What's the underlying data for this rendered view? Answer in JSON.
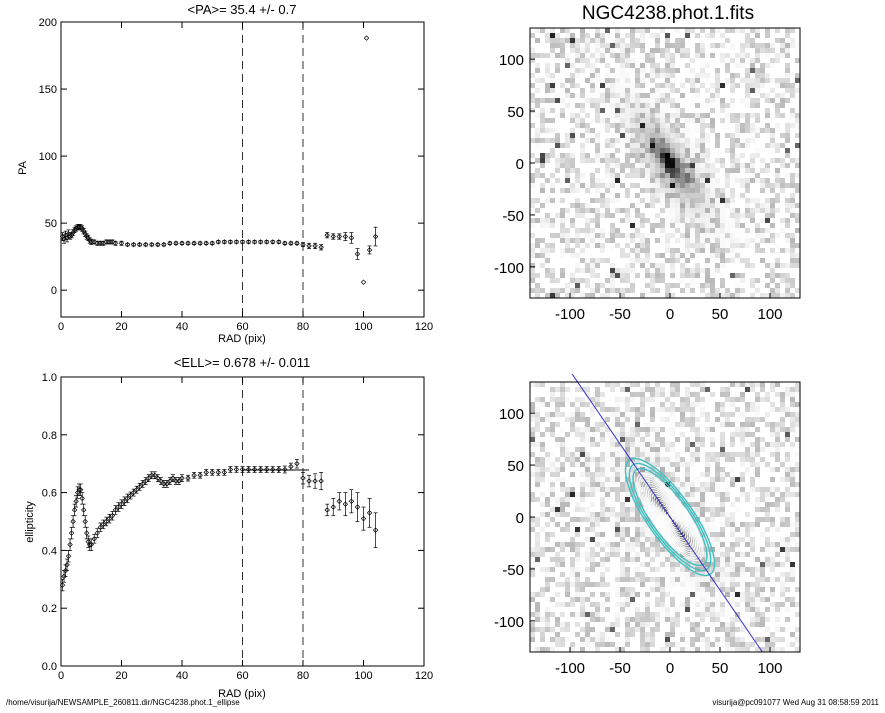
{
  "chart_data": [
    {
      "type": "scatter",
      "title": "<PA>=  35.4 +/-   0.7",
      "xlabel": "RAD (pix)",
      "ylabel": "PA",
      "xlim": [
        0,
        120
      ],
      "ylim": [
        -20,
        200
      ],
      "xticks": [
        0,
        20,
        40,
        60,
        80,
        100,
        120
      ],
      "yticks": [
        0,
        50,
        100,
        150,
        200
      ],
      "vlines": [
        60,
        80
      ],
      "grid": false,
      "series": [
        {
          "marker": "diamond",
          "points": [
            {
              "x": 0.5,
              "y": 40,
              "e": 3
            },
            {
              "x": 1,
              "y": 38,
              "e": 3
            },
            {
              "x": 1.5,
              "y": 41,
              "e": 3
            },
            {
              "x": 2,
              "y": 39,
              "e": 3
            },
            {
              "x": 2.5,
              "y": 42,
              "e": 3
            },
            {
              "x": 3,
              "y": 40,
              "e": 2
            },
            {
              "x": 3.5,
              "y": 41,
              "e": 2
            },
            {
              "x": 4,
              "y": 43,
              "e": 2
            },
            {
              "x": 4.5,
              "y": 45,
              "e": 2
            },
            {
              "x": 5,
              "y": 46,
              "e": 2
            },
            {
              "x": 5.5,
              "y": 47,
              "e": 2
            },
            {
              "x": 6,
              "y": 47,
              "e": 2
            },
            {
              "x": 6.5,
              "y": 47,
              "e": 2
            },
            {
              "x": 7,
              "y": 46,
              "e": 2
            },
            {
              "x": 7.5,
              "y": 44,
              "e": 2
            },
            {
              "x": 8,
              "y": 42,
              "e": 2
            },
            {
              "x": 8.5,
              "y": 40,
              "e": 2
            },
            {
              "x": 9,
              "y": 39,
              "e": 2
            },
            {
              "x": 9.5,
              "y": 37,
              "e": 2
            },
            {
              "x": 10,
              "y": 36,
              "e": 2
            },
            {
              "x": 11,
              "y": 36,
              "e": 1.5
            },
            {
              "x": 12,
              "y": 35,
              "e": 1.5
            },
            {
              "x": 13,
              "y": 35,
              "e": 1.5
            },
            {
              "x": 14,
              "y": 35,
              "e": 1.5
            },
            {
              "x": 15,
              "y": 36,
              "e": 1.5
            },
            {
              "x": 16,
              "y": 36,
              "e": 1.5
            },
            {
              "x": 17,
              "y": 36,
              "e": 1.5
            },
            {
              "x": 18,
              "y": 35,
              "e": 1.5
            },
            {
              "x": 20,
              "y": 35,
              "e": 1.5
            },
            {
              "x": 22,
              "y": 34,
              "e": 1
            },
            {
              "x": 24,
              "y": 34,
              "e": 1
            },
            {
              "x": 26,
              "y": 34,
              "e": 1
            },
            {
              "x": 28,
              "y": 34,
              "e": 1
            },
            {
              "x": 30,
              "y": 34,
              "e": 1
            },
            {
              "x": 32,
              "y": 34,
              "e": 1
            },
            {
              "x": 34,
              "y": 34,
              "e": 1
            },
            {
              "x": 36,
              "y": 35,
              "e": 1
            },
            {
              "x": 38,
              "y": 35,
              "e": 1
            },
            {
              "x": 40,
              "y": 35,
              "e": 1
            },
            {
              "x": 42,
              "y": 35,
              "e": 1
            },
            {
              "x": 44,
              "y": 35,
              "e": 1
            },
            {
              "x": 46,
              "y": 35,
              "e": 1
            },
            {
              "x": 48,
              "y": 35,
              "e": 1
            },
            {
              "x": 50,
              "y": 35,
              "e": 1
            },
            {
              "x": 52,
              "y": 36,
              "e": 1
            },
            {
              "x": 54,
              "y": 36,
              "e": 1
            },
            {
              "x": 56,
              "y": 36,
              "e": 1
            },
            {
              "x": 58,
              "y": 36,
              "e": 1
            },
            {
              "x": 60,
              "y": 36,
              "e": 1
            },
            {
              "x": 62,
              "y": 36,
              "e": 1
            },
            {
              "x": 64,
              "y": 36,
              "e": 1
            },
            {
              "x": 66,
              "y": 36,
              "e": 1
            },
            {
              "x": 68,
              "y": 36,
              "e": 1
            },
            {
              "x": 70,
              "y": 36,
              "e": 1
            },
            {
              "x": 72,
              "y": 36,
              "e": 1
            },
            {
              "x": 74,
              "y": 35,
              "e": 1
            },
            {
              "x": 76,
              "y": 35,
              "e": 1
            },
            {
              "x": 78,
              "y": 35,
              "e": 1
            },
            {
              "x": 80,
              "y": 34,
              "e": 1.5
            },
            {
              "x": 82,
              "y": 33,
              "e": 2
            },
            {
              "x": 84,
              "y": 33,
              "e": 2
            },
            {
              "x": 86,
              "y": 32,
              "e": 2
            },
            {
              "x": 88,
              "y": 41,
              "e": 2
            },
            {
              "x": 90,
              "y": 40,
              "e": 2
            },
            {
              "x": 92,
              "y": 40,
              "e": 2
            },
            {
              "x": 94,
              "y": 40,
              "e": 3
            },
            {
              "x": 96,
              "y": 39,
              "e": 4
            },
            {
              "x": 98,
              "y": 27,
              "e": 4
            },
            {
              "x": 100,
              "y": 6,
              "e": 0
            },
            {
              "x": 102,
              "y": 30,
              "e": 3
            },
            {
              "x": 104,
              "y": 40,
              "e": 7
            },
            {
              "x": 101,
              "y": 188,
              "e": 0
            }
          ]
        }
      ]
    },
    {
      "type": "scatter",
      "title": "<ELL>= 0.678 +/-  0.011",
      "xlabel": "RAD (pix)",
      "ylabel": "ellipticity",
      "xlim": [
        0,
        120
      ],
      "ylim": [
        0.0,
        1.0
      ],
      "xticks": [
        0,
        20,
        40,
        60,
        80,
        100,
        120
      ],
      "yticks": [
        "0.0",
        "0.2",
        "0.4",
        "0.6",
        "0.8",
        "1.0"
      ],
      "vlines": [
        60,
        80
      ],
      "hline": {
        "y": 0.678,
        "x0": 60,
        "x1": 82
      },
      "grid": false,
      "series": [
        {
          "marker": "diamond",
          "points": [
            {
              "x": 0.5,
              "y": 0.28,
              "e": 0.02
            },
            {
              "x": 1,
              "y": 0.31,
              "e": 0.02
            },
            {
              "x": 1.5,
              "y": 0.33,
              "e": 0.02
            },
            {
              "x": 2,
              "y": 0.35,
              "e": 0.02
            },
            {
              "x": 2.5,
              "y": 0.38,
              "e": 0.02
            },
            {
              "x": 3,
              "y": 0.42,
              "e": 0.02
            },
            {
              "x": 3.5,
              "y": 0.46,
              "e": 0.02
            },
            {
              "x": 4,
              "y": 0.5,
              "e": 0.02
            },
            {
              "x": 4.5,
              "y": 0.54,
              "e": 0.02
            },
            {
              "x": 5,
              "y": 0.57,
              "e": 0.02
            },
            {
              "x": 5.5,
              "y": 0.6,
              "e": 0.02
            },
            {
              "x": 6,
              "y": 0.61,
              "e": 0.02
            },
            {
              "x": 6.5,
              "y": 0.61,
              "e": 0.02
            },
            {
              "x": 7,
              "y": 0.58,
              "e": 0.02
            },
            {
              "x": 7.5,
              "y": 0.54,
              "e": 0.02
            },
            {
              "x": 8,
              "y": 0.5,
              "e": 0.02
            },
            {
              "x": 8.5,
              "y": 0.46,
              "e": 0.02
            },
            {
              "x": 9,
              "y": 0.43,
              "e": 0.02
            },
            {
              "x": 9.5,
              "y": 0.42,
              "e": 0.02
            },
            {
              "x": 10,
              "y": 0.42,
              "e": 0.02
            },
            {
              "x": 11,
              "y": 0.44,
              "e": 0.015
            },
            {
              "x": 12,
              "y": 0.46,
              "e": 0.015
            },
            {
              "x": 13,
              "y": 0.48,
              "e": 0.015
            },
            {
              "x": 14,
              "y": 0.49,
              "e": 0.015
            },
            {
              "x": 15,
              "y": 0.5,
              "e": 0.015
            },
            {
              "x": 16,
              "y": 0.51,
              "e": 0.015
            },
            {
              "x": 17,
              "y": 0.52,
              "e": 0.015
            },
            {
              "x": 18,
              "y": 0.54,
              "e": 0.015
            },
            {
              "x": 19,
              "y": 0.55,
              "e": 0.015
            },
            {
              "x": 20,
              "y": 0.56,
              "e": 0.015
            },
            {
              "x": 21,
              "y": 0.57,
              "e": 0.015
            },
            {
              "x": 22,
              "y": 0.58,
              "e": 0.015
            },
            {
              "x": 23,
              "y": 0.59,
              "e": 0.012
            },
            {
              "x": 24,
              "y": 0.6,
              "e": 0.012
            },
            {
              "x": 25,
              "y": 0.61,
              "e": 0.012
            },
            {
              "x": 26,
              "y": 0.62,
              "e": 0.012
            },
            {
              "x": 27,
              "y": 0.63,
              "e": 0.012
            },
            {
              "x": 28,
              "y": 0.64,
              "e": 0.012
            },
            {
              "x": 29,
              "y": 0.65,
              "e": 0.012
            },
            {
              "x": 30,
              "y": 0.66,
              "e": 0.012
            },
            {
              "x": 31,
              "y": 0.66,
              "e": 0.012
            },
            {
              "x": 32,
              "y": 0.65,
              "e": 0.012
            },
            {
              "x": 33,
              "y": 0.64,
              "e": 0.012
            },
            {
              "x": 34,
              "y": 0.63,
              "e": 0.012
            },
            {
              "x": 35,
              "y": 0.63,
              "e": 0.012
            },
            {
              "x": 36,
              "y": 0.64,
              "e": 0.012
            },
            {
              "x": 37,
              "y": 0.65,
              "e": 0.012
            },
            {
              "x": 38,
              "y": 0.64,
              "e": 0.012
            },
            {
              "x": 39,
              "y": 0.64,
              "e": 0.012
            },
            {
              "x": 40,
              "y": 0.65,
              "e": 0.012
            },
            {
              "x": 42,
              "y": 0.65,
              "e": 0.01
            },
            {
              "x": 44,
              "y": 0.66,
              "e": 0.01
            },
            {
              "x": 46,
              "y": 0.66,
              "e": 0.01
            },
            {
              "x": 48,
              "y": 0.67,
              "e": 0.01
            },
            {
              "x": 50,
              "y": 0.67,
              "e": 0.01
            },
            {
              "x": 52,
              "y": 0.67,
              "e": 0.01
            },
            {
              "x": 54,
              "y": 0.67,
              "e": 0.01
            },
            {
              "x": 56,
              "y": 0.68,
              "e": 0.01
            },
            {
              "x": 58,
              "y": 0.68,
              "e": 0.01
            },
            {
              "x": 60,
              "y": 0.68,
              "e": 0.01
            },
            {
              "x": 62,
              "y": 0.68,
              "e": 0.01
            },
            {
              "x": 64,
              "y": 0.68,
              "e": 0.01
            },
            {
              "x": 66,
              "y": 0.68,
              "e": 0.01
            },
            {
              "x": 68,
              "y": 0.68,
              "e": 0.01
            },
            {
              "x": 70,
              "y": 0.68,
              "e": 0.01
            },
            {
              "x": 72,
              "y": 0.68,
              "e": 0.01
            },
            {
              "x": 74,
              "y": 0.68,
              "e": 0.012
            },
            {
              "x": 76,
              "y": 0.69,
              "e": 0.012
            },
            {
              "x": 78,
              "y": 0.7,
              "e": 0.015
            },
            {
              "x": 80,
              "y": 0.65,
              "e": 0.02
            },
            {
              "x": 82,
              "y": 0.64,
              "e": 0.02
            },
            {
              "x": 84,
              "y": 0.64,
              "e": 0.025
            },
            {
              "x": 86,
              "y": 0.64,
              "e": 0.03
            },
            {
              "x": 88,
              "y": 0.54,
              "e": 0.02
            },
            {
              "x": 90,
              "y": 0.55,
              "e": 0.03
            },
            {
              "x": 92,
              "y": 0.57,
              "e": 0.03
            },
            {
              "x": 94,
              "y": 0.56,
              "e": 0.04
            },
            {
              "x": 96,
              "y": 0.57,
              "e": 0.04
            },
            {
              "x": 98,
              "y": 0.55,
              "e": 0.05
            },
            {
              "x": 100,
              "y": 0.51,
              "e": 0.04
            },
            {
              "x": 102,
              "y": 0.53,
              "e": 0.05
            },
            {
              "x": 104,
              "y": 0.47,
              "e": 0.06
            }
          ]
        }
      ]
    },
    {
      "type": "heatmap",
      "title": "NGC4238.phot.1.fits",
      "xlim": [
        -140,
        130
      ],
      "ylim": [
        -130,
        130
      ],
      "xticks": [
        -100,
        -50,
        0,
        50,
        100
      ],
      "yticks": [
        -100,
        -50,
        0,
        50,
        100
      ],
      "colormap": "inverted-grayscale",
      "galaxy": {
        "x0": 0,
        "y0": 0,
        "pa_deg": 35.4,
        "ellipticity": 0.678
      }
    },
    {
      "type": "heatmap",
      "title": "",
      "xlim": [
        -140,
        130
      ],
      "ylim": [
        -130,
        130
      ],
      "xticks": [
        -100,
        -50,
        0,
        50,
        100
      ],
      "yticks": [
        -100,
        -50,
        0,
        50,
        100
      ],
      "colormap": "inverted-grayscale",
      "galaxy": {
        "x0": 0,
        "y0": 0,
        "pa_deg": 35.4,
        "ellipticity": 0.678
      },
      "major_axis_line_color": "#3333cc",
      "contour_color": "#40c0c0",
      "isophote_color": "#ffffff"
    }
  ],
  "footer": {
    "left": "/home/visurija/NEWSAMPLE_260811.dir/NGC4238.phot.1_ellipse",
    "right": "visurija@pc091077  Wed Aug 31 08:58:59 2011"
  }
}
